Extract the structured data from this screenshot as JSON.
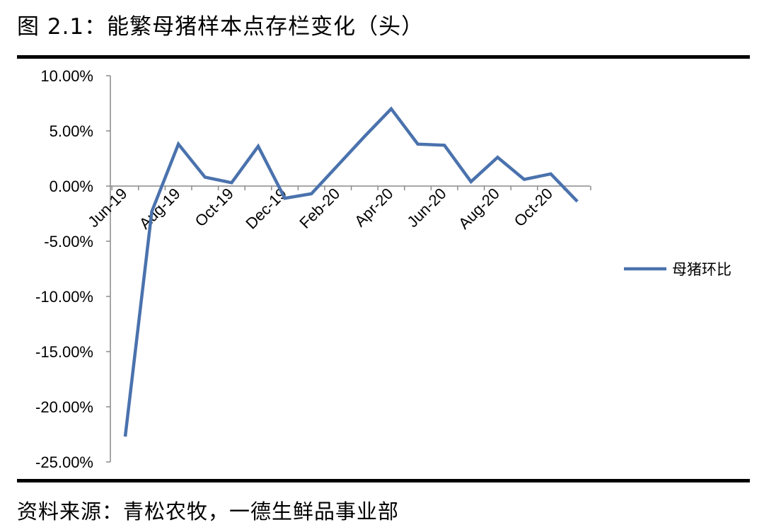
{
  "figure": {
    "title": "图 2.1：能繁母猪样本点存栏变化（头）",
    "source": "资料来源：青松农牧，一德生鲜品事业部"
  },
  "colors": {
    "series": "#4a72ad",
    "axis": "#8a8a8a"
  },
  "chart_data": {
    "type": "line",
    "title": "",
    "xlabel": "",
    "ylabel": "",
    "ylim": [
      -25,
      10
    ],
    "y_ticks": [
      "10.00%",
      "5.00%",
      "0.00%",
      "-5.00%",
      "-10.00%",
      "-15.00%",
      "-20.00%",
      "-25.00%"
    ],
    "y_tick_values": [
      10,
      5,
      0,
      -5,
      -10,
      -15,
      -20,
      -25
    ],
    "x": [
      "Jun-19",
      "Jul-19",
      "Aug-19",
      "Sep-19",
      "Oct-19",
      "Nov-19",
      "Dec-19",
      "Jan-20",
      "Feb-20",
      "Mar-20",
      "Apr-20",
      "May-20",
      "Jun-20",
      "Jul-20",
      "Aug-20",
      "Sep-20",
      "Oct-20",
      "Nov-20"
    ],
    "x_tick_labels": [
      "Jun-19",
      "Aug-19",
      "Oct-19",
      "Dec-19",
      "Feb-20",
      "Apr-20",
      "Jun-20",
      "Aug-20",
      "Oct-20"
    ],
    "series": [
      {
        "name": "母猪环比",
        "values": [
          -22.7,
          -2.3,
          3.8,
          0.8,
          0.3,
          3.6,
          -1.1,
          -0.7,
          1.9,
          4.5,
          7.0,
          3.8,
          3.7,
          0.4,
          2.6,
          0.6,
          1.1,
          -1.4
        ]
      }
    ],
    "legend_position": "right",
    "grid": false
  }
}
